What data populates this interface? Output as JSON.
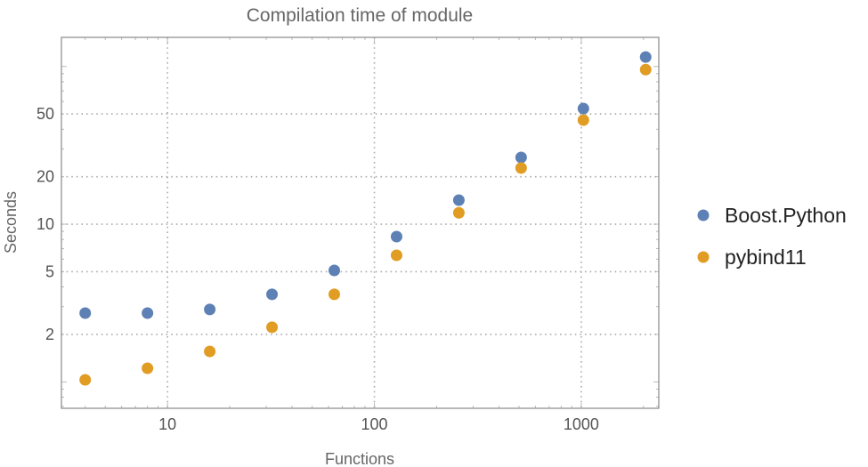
{
  "chart_data": {
    "type": "scatter",
    "title": "Compilation time of module",
    "xlabel": "Functions",
    "ylabel": "Seconds",
    "xscale": "log",
    "yscale": "log",
    "xlim": [
      3.07,
      2370
    ],
    "ylim": [
      0.68,
      153
    ],
    "grid": true,
    "legend_position": "right",
    "x_ticks": [
      {
        "value": 10,
        "label": "10"
      },
      {
        "value": 100,
        "label": "100"
      },
      {
        "value": 1000,
        "label": "1000"
      }
    ],
    "y_ticks": [
      {
        "value": 2,
        "label": "2"
      },
      {
        "value": 5,
        "label": "5"
      },
      {
        "value": 10,
        "label": "10"
      },
      {
        "value": 20,
        "label": "20"
      },
      {
        "value": 50,
        "label": "50"
      }
    ],
    "x": [
      4,
      8,
      16,
      32,
      64,
      128,
      256,
      512,
      1024,
      2048
    ],
    "series": [
      {
        "name": "Boost.Python",
        "color": "#5e81b5",
        "values": [
          2.73,
          2.73,
          2.88,
          3.59,
          5.09,
          8.34,
          14.2,
          26.5,
          54.1,
          114.8
        ]
      },
      {
        "name": "pybind11",
        "color": "#e19c24",
        "values": [
          1.03,
          1.22,
          1.56,
          2.22,
          3.59,
          6.35,
          11.8,
          22.7,
          45.7,
          95.5
        ]
      }
    ]
  }
}
